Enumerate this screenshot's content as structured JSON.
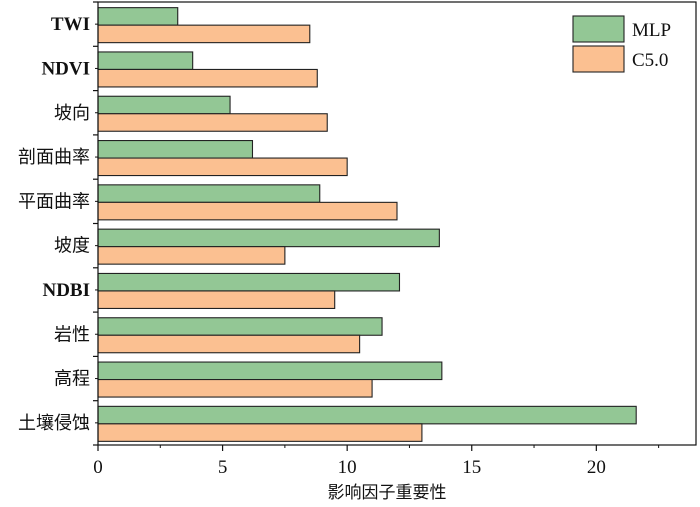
{
  "chart_data": {
    "type": "bar",
    "orientation": "horizontal",
    "categories": [
      "TWI",
      "NDVI",
      "坡向",
      "剖面曲率",
      "平面曲率",
      "坡度",
      "NDBI",
      "岩性",
      "高程",
      "土壤侵蚀"
    ],
    "series": [
      {
        "name": "MLP",
        "color": "#93c795",
        "values": [
          3.2,
          3.8,
          5.3,
          6.2,
          8.9,
          13.7,
          12.1,
          11.4,
          13.8,
          21.6
        ]
      },
      {
        "name": "C5.0",
        "color": "#fbc091",
        "values": [
          8.5,
          8.8,
          9.2,
          10.0,
          12.0,
          7.5,
          9.5,
          10.5,
          11.0,
          13.0
        ]
      }
    ],
    "xlabel": "影响因子重要性",
    "ylabel": "",
    "xlim": [
      0,
      24
    ],
    "xticks": [
      0,
      5,
      10,
      15,
      20
    ],
    "grid": false,
    "legend": "top-right"
  }
}
